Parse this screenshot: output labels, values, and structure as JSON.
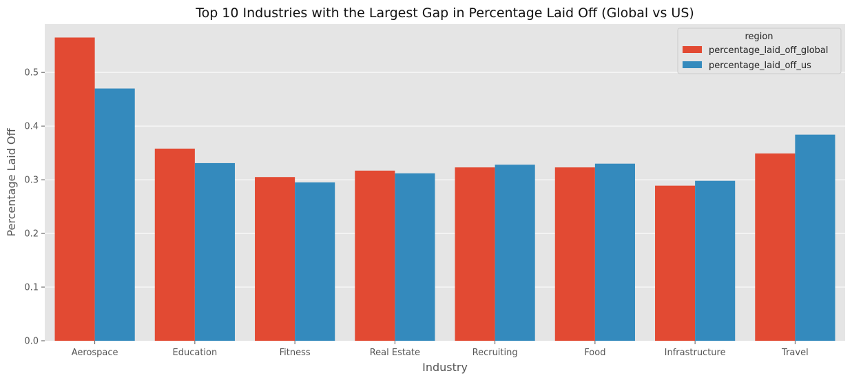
{
  "chart_data": {
    "type": "bar",
    "title": "Top 10 Industries with the Largest Gap in Percentage Laid Off (Global vs US)",
    "xlabel": "Industry",
    "ylabel": "Percentage Laid Off",
    "categories": [
      "Aerospace",
      "Education",
      "Fitness",
      "Real Estate",
      "Recruiting",
      "Food",
      "Infrastructure",
      "Travel"
    ],
    "series": [
      {
        "name": "percentage_laid_off_global",
        "color": "#E24A33",
        "values": [
          0.565,
          0.358,
          0.305,
          0.317,
          0.323,
          0.323,
          0.289,
          0.349
        ]
      },
      {
        "name": "percentage_laid_off_us",
        "color": "#348ABD",
        "values": [
          0.47,
          0.331,
          0.295,
          0.312,
          0.328,
          0.33,
          0.298,
          0.384
        ]
      }
    ],
    "ylim": [
      0,
      0.59
    ],
    "yticks": [
      "0.0",
      "0.1",
      "0.2",
      "0.3",
      "0.4",
      "0.5"
    ],
    "legend_title": "region",
    "legend_position": "top-right",
    "grid": true,
    "background_color": "#E5E5E5"
  }
}
